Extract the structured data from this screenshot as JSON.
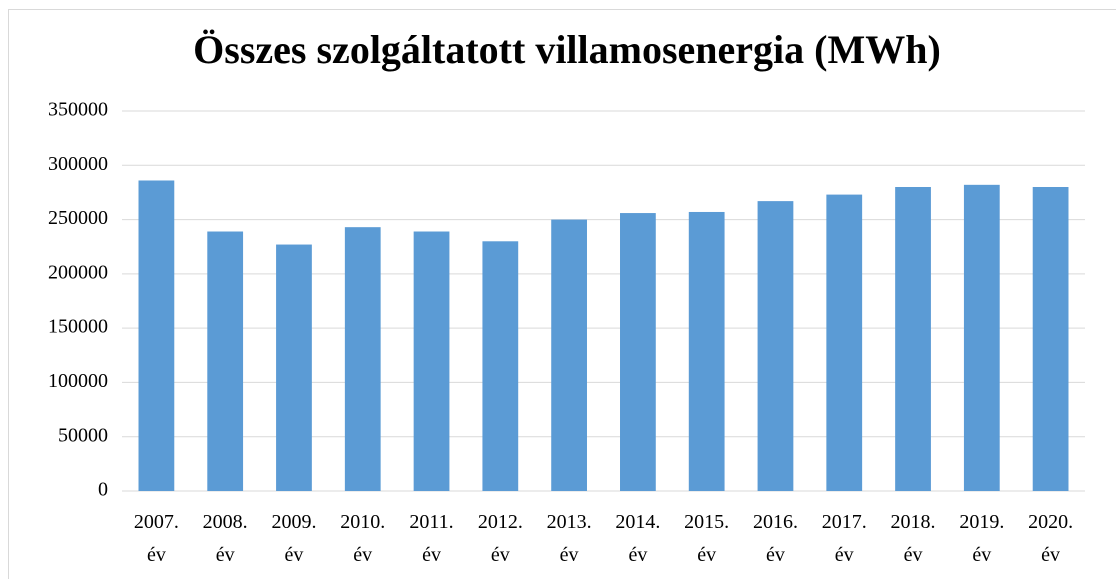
{
  "chart_data": {
    "type": "bar",
    "title": "Összes szolgáltatott villamosenergia (MWh)",
    "categories": [
      "2007. év",
      "2008. év",
      "2009. év",
      "2010. év",
      "2011. év",
      "2012. év",
      "2013. év",
      "2014. év",
      "2015. év",
      "2016. év",
      "2017. év",
      "2018. év",
      "2019. év",
      "2020. év"
    ],
    "values": [
      286000,
      239000,
      227000,
      243000,
      239000,
      230000,
      250000,
      256000,
      257000,
      267000,
      273000,
      280000,
      282000,
      280000
    ],
    "color": "#5b9bd5",
    "ylim": [
      0,
      350000
    ],
    "yticks": [
      0,
      50000,
      100000,
      150000,
      200000,
      250000,
      300000,
      350000
    ],
    "grid": true
  }
}
